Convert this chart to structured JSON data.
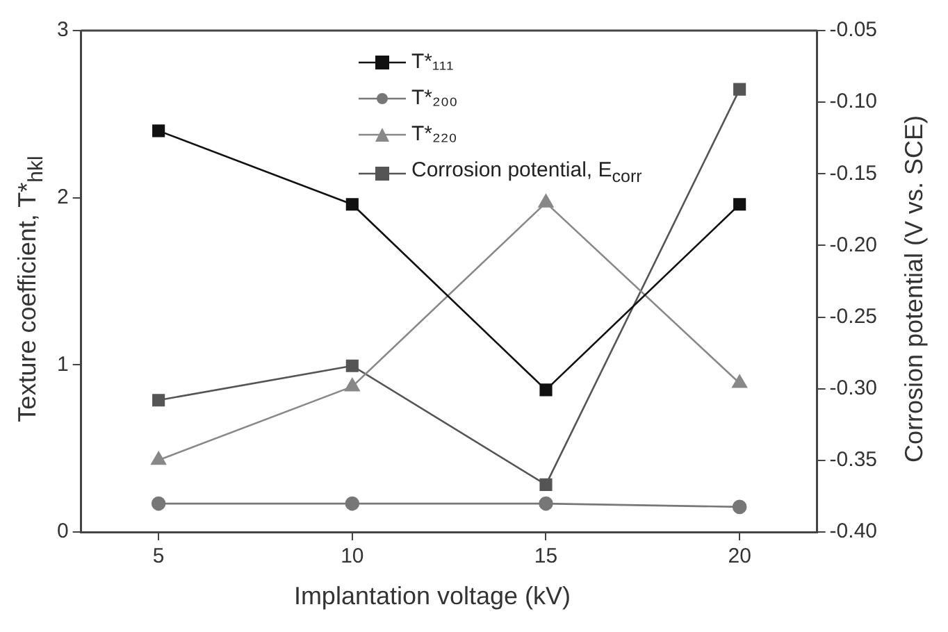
{
  "chart_data": {
    "type": "line",
    "xlabel": "Implantation voltage (kV)",
    "ylabel": "Texture coefficient, T*$_{hkl}$",
    "y2label": "Corrosion potential (V vs. SCE)",
    "x": [
      5,
      10,
      15,
      20
    ],
    "xlim": [
      3,
      22
    ],
    "xticks": [
      5,
      10,
      15,
      20
    ],
    "ylim": [
      0,
      3
    ],
    "yticks": [
      0,
      1,
      2,
      3
    ],
    "y2lim": [
      -0.4,
      -0.05
    ],
    "y2ticks": [
      {
        "value": -0.4,
        "label": "-0.40"
      },
      {
        "value": -0.35,
        "label": "-0.35"
      },
      {
        "value": -0.3,
        "label": "-0.30"
      },
      {
        "value": -0.25,
        "label": "-0.25"
      },
      {
        "value": -0.2,
        "label": "-0.20"
      },
      {
        "value": -0.15,
        "label": "-0.15"
      },
      {
        "value": -0.1,
        "label": "-0.10"
      },
      {
        "value": -0.05,
        "label": "-0.05"
      }
    ],
    "grid": false,
    "legend": "top",
    "line_style": "solid",
    "series": [
      {
        "name": "T*₁₁₁",
        "color": "#111111",
        "marker": "square",
        "values": [
          2.4,
          1.96,
          0.85,
          1.96
        ]
      },
      {
        "name": "T*₂₀₀",
        "color": "#777777",
        "marker": "circle",
        "values": [
          0.17,
          0.17,
          0.17,
          0.15
        ]
      },
      {
        "name": "T*₂₂₀",
        "color": "#888888",
        "marker": "triangle",
        "values": [
          0.43,
          0.87,
          1.97,
          0.89
        ]
      },
      {
        "name": "Corrosion potential, E$_{corr}$",
        "color": "#555555",
        "marker": "square",
        "axis": "y2",
        "values": [
          -0.308,
          -0.284,
          -0.367,
          -0.091
        ]
      }
    ]
  }
}
